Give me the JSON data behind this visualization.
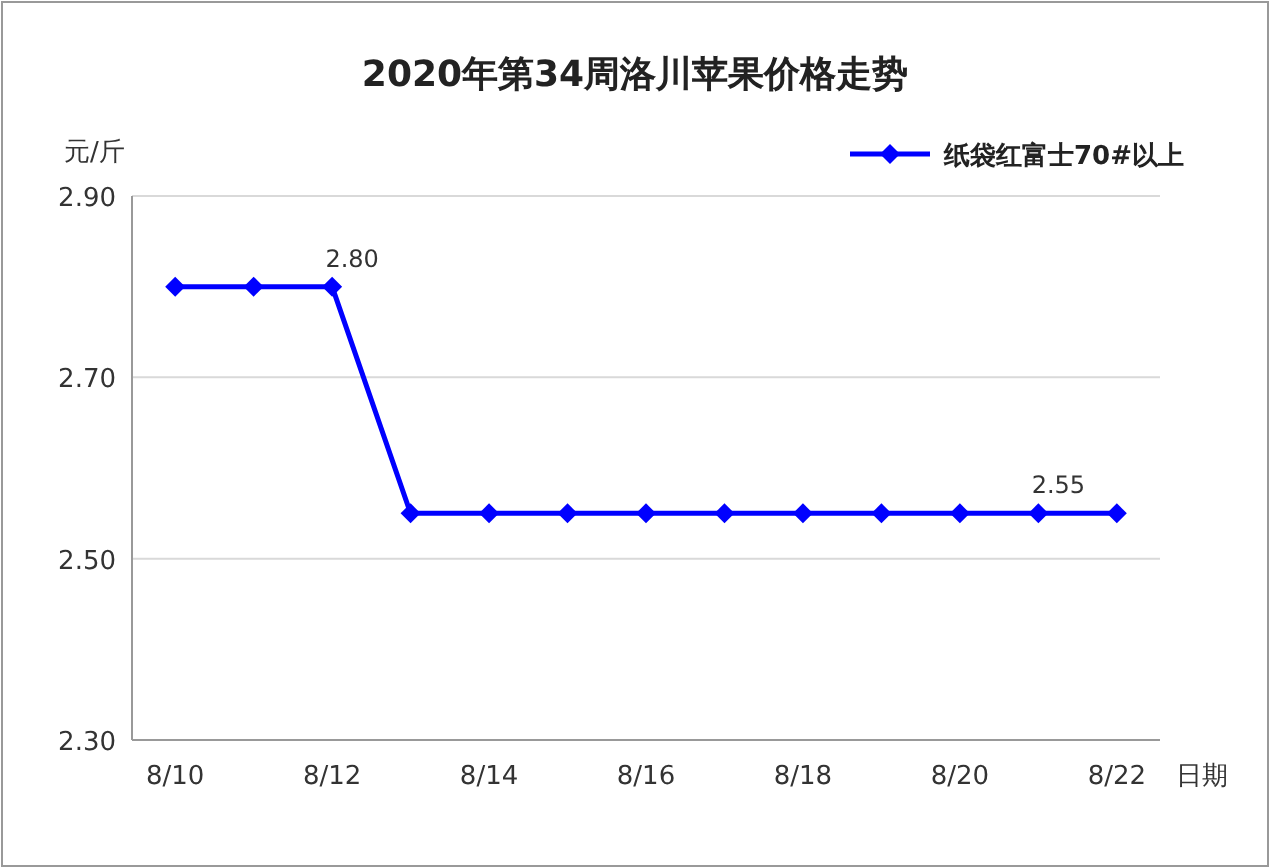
{
  "chart_data": {
    "type": "line",
    "title": "2020年第34周洛川苹果价格走势",
    "xlabel": "日期",
    "ylabel": "元/斤",
    "categories": [
      "8/10",
      null,
      "8/12",
      null,
      "8/14",
      null,
      "8/16",
      null,
      "8/18",
      null,
      "8/20",
      null,
      "8/22"
    ],
    "series": [
      {
        "name": "纸袋红富士70#以上",
        "color": "#0000ff",
        "values": [
          2.8,
          2.8,
          2.8,
          2.55,
          2.55,
          2.55,
          2.55,
          2.55,
          2.55,
          2.55,
          2.55,
          2.55,
          2.55
        ],
        "value_labels": [
          null,
          null,
          "2.80",
          null,
          null,
          null,
          null,
          null,
          null,
          null,
          null,
          "2.55",
          null
        ]
      }
    ],
    "ylim": [
      2.3,
      2.9
    ],
    "yticks": [
      {
        "value": 2.3,
        "label": "2.30"
      },
      {
        "value": 2.5,
        "label": "2.50"
      },
      {
        "value": 2.7,
        "label": "2.70"
      },
      {
        "value": 2.9,
        "label": "2.90"
      }
    ],
    "grid": "y",
    "legend": "top right",
    "marker": "diamond",
    "line_style": "solid"
  }
}
